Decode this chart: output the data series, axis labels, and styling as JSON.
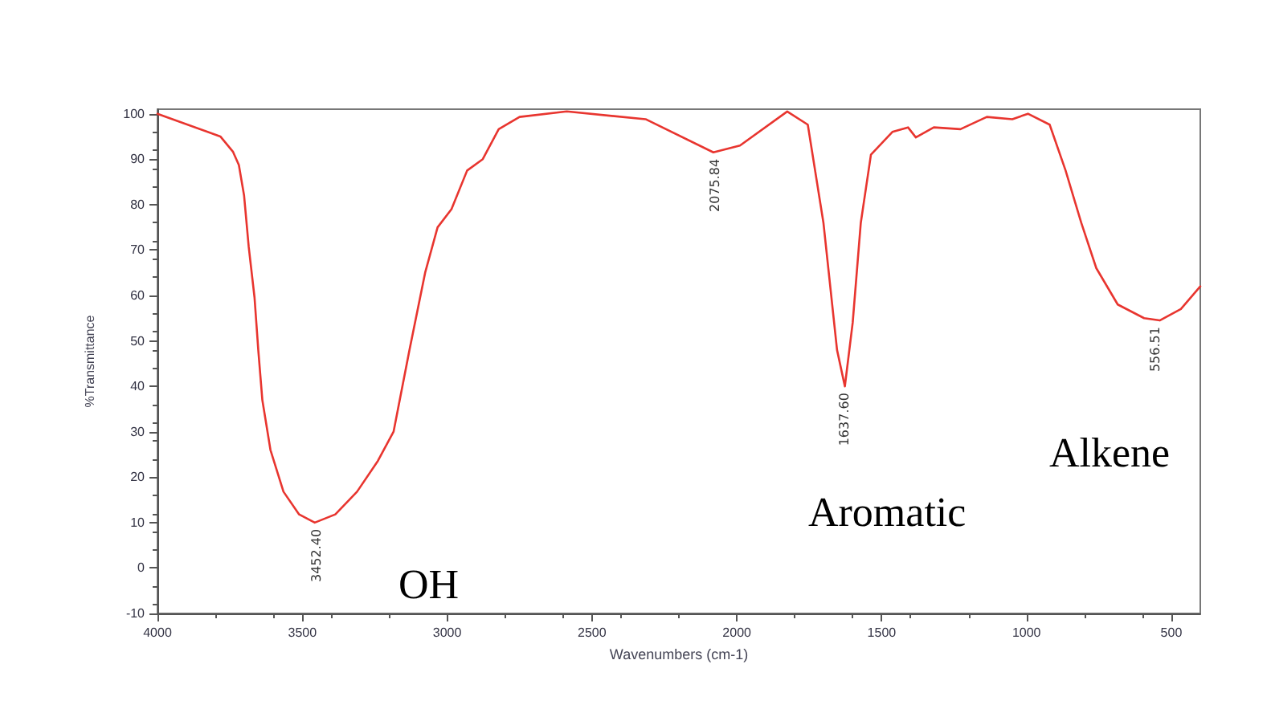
{
  "chart_data": {
    "type": "line",
    "xlabel": "Wavenumbers (cm-1)",
    "ylabel": "%Transmittance",
    "xlim": [
      4000,
      400
    ],
    "xticks": [
      4000,
      3500,
      3000,
      2500,
      2000,
      1500,
      1000,
      500
    ],
    "ylim": [
      -10,
      101
    ],
    "yticks": [
      -10,
      0,
      10,
      20,
      30,
      40,
      50,
      60,
      70,
      80,
      90,
      100
    ],
    "grid": false,
    "marker": "none",
    "line_style": "solid",
    "series": [
      {
        "color": "#e8352f",
        "x": [
          4000,
          3783,
          3739,
          3719,
          3701,
          3685,
          3665,
          3652,
          3638,
          3610,
          3565,
          3511,
          3457,
          3386,
          3311,
          3239,
          3185,
          3130,
          3076,
          3033,
          2985,
          2931,
          2877,
          2822,
          2750,
          2587,
          2315,
          2081,
          1989,
          1826,
          1755,
          1701,
          1654,
          1627,
          1600,
          1572,
          1537,
          1463,
          1409,
          1382,
          1320,
          1228,
          1137,
          1049,
          995,
          920,
          865,
          811,
          759,
          685,
          594,
          540,
          467,
          400
        ],
        "values": [
          100,
          95,
          91.6,
          88.7,
          82,
          70.7,
          59.6,
          48,
          37,
          26,
          16.8,
          11.8,
          10,
          11.8,
          16.8,
          23.6,
          30,
          48,
          65,
          75,
          79,
          87.5,
          90,
          96.6,
          99.3,
          100.5,
          98.8,
          91.5,
          93,
          100.5,
          97.6,
          76,
          48,
          40,
          54,
          76,
          91,
          96,
          97,
          94.8,
          97,
          96.6,
          99.3,
          98.8,
          100,
          97.6,
          87.5,
          76,
          66,
          58,
          55,
          54.5,
          57,
          62
        ]
      }
    ],
    "annotations": [
      {
        "text": "3452.40",
        "x": 3452,
        "y": 10
      },
      {
        "text": "2075.84",
        "x": 2076,
        "y": 91.5
      },
      {
        "text": "1637.60",
        "x": 1630,
        "y": 40
      },
      {
        "text": "556.51",
        "x": 556,
        "y": 54.5
      },
      "OH",
      "Aromatic",
      "Alkene"
    ]
  }
}
